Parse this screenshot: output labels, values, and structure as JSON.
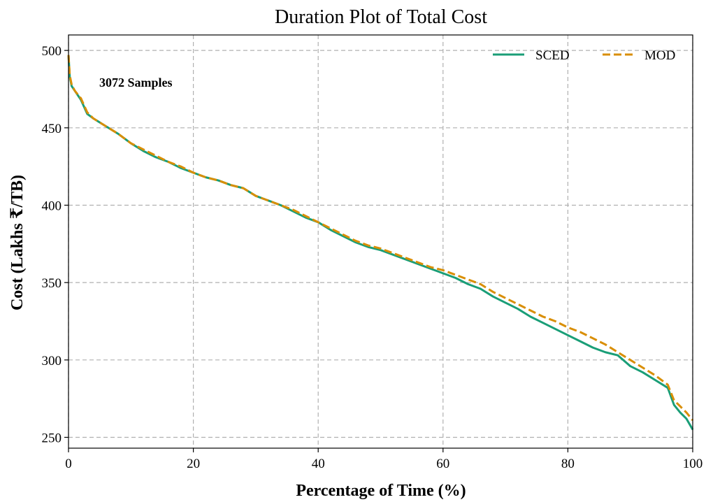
{
  "chart_data": {
    "type": "line",
    "title": "Duration Plot of Total Cost",
    "xlabel": "Percentage of Time (%)",
    "ylabel": "Cost (Lakhs ₹/TB)",
    "xlim": [
      0,
      100
    ],
    "ylim": [
      243,
      510
    ],
    "xticks": [
      0,
      20,
      40,
      60,
      80,
      100
    ],
    "yticks": [
      250,
      300,
      350,
      400,
      450,
      500
    ],
    "grid": true,
    "legend_position": "top-right",
    "annotation": "3072 Samples",
    "series": [
      {
        "name": "SCED",
        "color": "#1a9e77",
        "style": "solid",
        "x": [
          0,
          0.2,
          0.5,
          1,
          2,
          3,
          4,
          6,
          8,
          10,
          12,
          14,
          16,
          18,
          20,
          22,
          24,
          26,
          28,
          30,
          32,
          34,
          36,
          38,
          40,
          42,
          44,
          46,
          48,
          50,
          52,
          54,
          56,
          58,
          60,
          62,
          64,
          66,
          68,
          70,
          72,
          74,
          76,
          78,
          80,
          82,
          84,
          86,
          88,
          90,
          92,
          94,
          96,
          97,
          98,
          99,
          100
        ],
        "values": [
          497,
          483,
          477,
          474,
          468,
          459,
          456,
          451,
          446,
          440,
          435,
          431,
          428,
          424,
          421,
          418,
          416,
          413,
          411,
          406,
          403,
          400,
          396,
          392,
          389,
          384,
          380,
          376,
          373,
          371,
          368,
          365,
          362,
          359,
          356,
          353,
          349,
          346,
          341,
          337,
          333,
          328,
          324,
          320,
          316,
          312,
          308,
          305,
          303,
          296,
          292,
          287,
          282,
          271,
          266,
          262,
          255
        ]
      },
      {
        "name": "MOD",
        "color": "#d98e04",
        "style": "dashed",
        "x": [
          0,
          0.2,
          0.5,
          1,
          2,
          3,
          4,
          6,
          8,
          10,
          12,
          14,
          16,
          18,
          20,
          22,
          24,
          26,
          28,
          30,
          32,
          34,
          36,
          38,
          40,
          42,
          44,
          46,
          48,
          50,
          52,
          54,
          56,
          58,
          60,
          62,
          64,
          66,
          68,
          70,
          72,
          74,
          76,
          78,
          80,
          82,
          84,
          86,
          88,
          90,
          92,
          94,
          96,
          97,
          98,
          99,
          100
        ],
        "values": [
          497,
          484,
          478,
          474,
          469,
          460,
          456,
          451,
          446,
          440,
          436,
          432,
          428,
          425,
          421,
          418,
          416,
          413,
          411,
          406,
          403,
          400,
          397,
          393,
          389,
          385,
          381,
          377,
          374,
          372,
          369,
          366,
          363,
          360,
          358,
          355,
          352,
          349,
          344,
          340,
          336,
          332,
          328,
          325,
          321,
          318,
          314,
          310,
          305,
          300,
          295,
          290,
          284,
          274,
          270,
          266,
          261
        ]
      }
    ]
  }
}
